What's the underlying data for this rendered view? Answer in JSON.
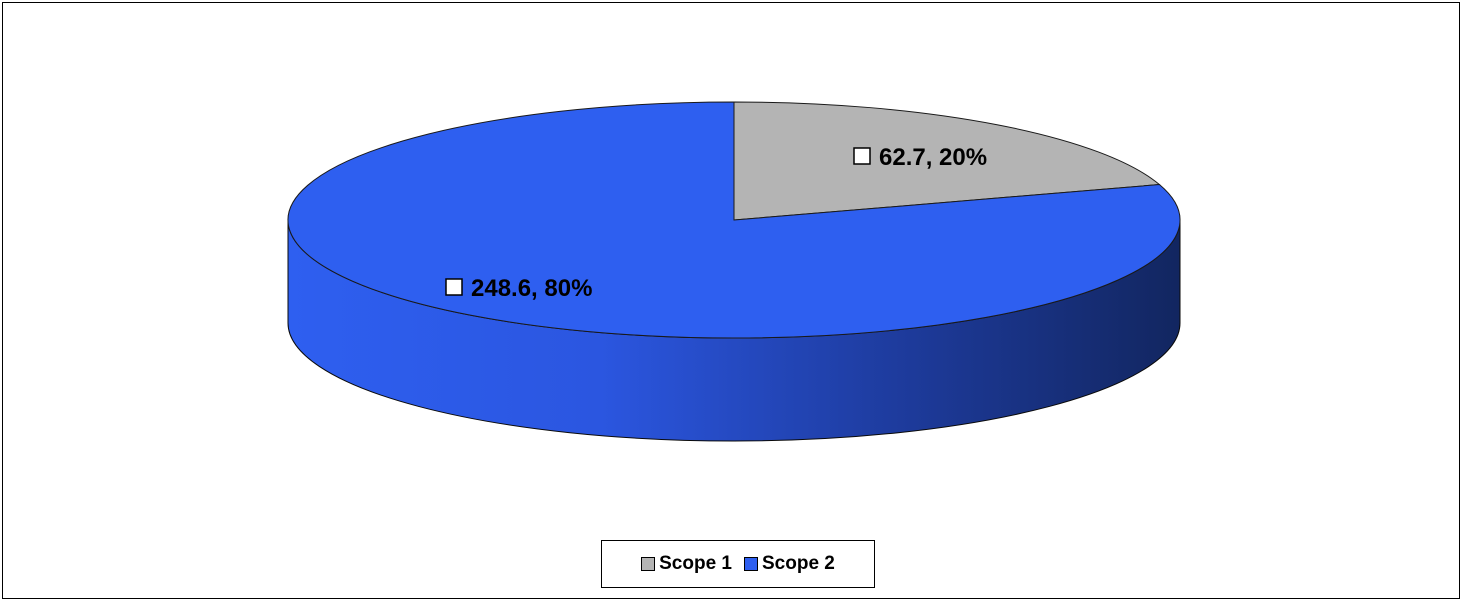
{
  "chart_data": {
    "type": "pie",
    "title": "",
    "series": [
      {
        "values": [
          62.7,
          248.6
        ],
        "categories": [
          "Scope 1",
          "Scope 2"
        ],
        "colors": [
          "#b4b4b4",
          "#2e5ff0"
        ]
      }
    ],
    "data_labels": [
      "62.7, 20%",
      "248.6, 80%"
    ],
    "legend": {
      "position": "bottom",
      "entries": [
        "Scope 1",
        "Scope 2"
      ]
    },
    "style": "3d-ellipse"
  }
}
